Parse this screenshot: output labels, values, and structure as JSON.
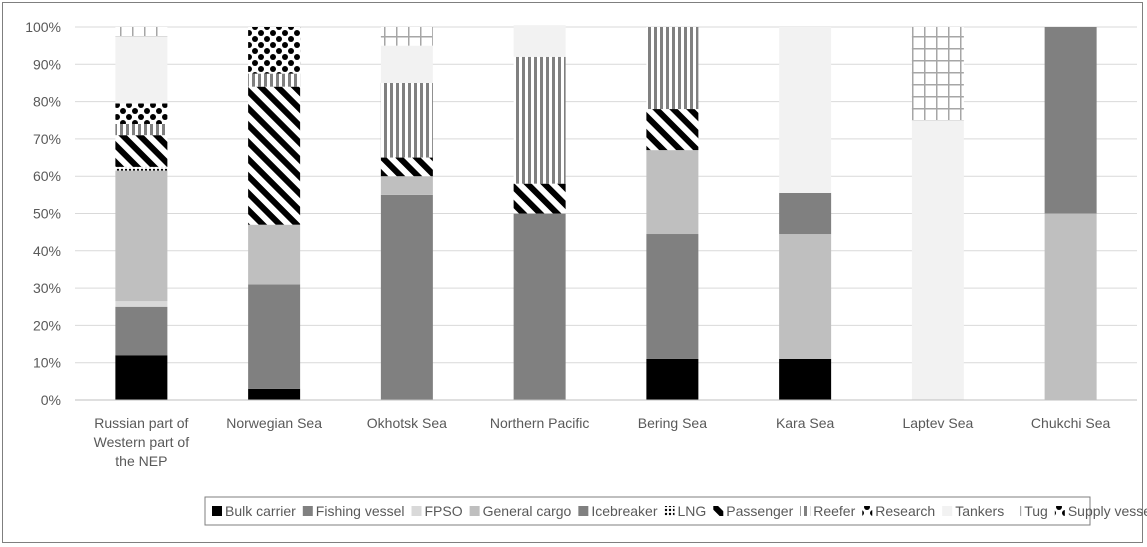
{
  "chart_data": {
    "type": "bar",
    "stacked": true,
    "normalized": true,
    "categories": [
      [
        "Russian part of",
        "Western part of",
        "the NEP"
      ],
      [
        "Norwegian Sea"
      ],
      [
        "Okhotsk Sea"
      ],
      [
        "Northern Pacific"
      ],
      [
        "Bering Sea"
      ],
      [
        "Kara Sea"
      ],
      [
        "Laptev Sea"
      ],
      [
        "Chukchi Sea"
      ]
    ],
    "yticks": [
      "0%",
      "10%",
      "20%",
      "30%",
      "40%",
      "50%",
      "60%",
      "70%",
      "80%",
      "90%",
      "100%"
    ],
    "ylim": [
      0,
      100
    ],
    "grid": true,
    "legend_position": "bottom",
    "series": [
      {
        "name": "Bulk carrier",
        "values": [
          12,
          3,
          0,
          0,
          11,
          11,
          0,
          0
        ],
        "color": "#000000",
        "pattern": "solid"
      },
      {
        "name": "Fishing vessel",
        "values": [
          13,
          28,
          55,
          50,
          33.5,
          0,
          0,
          0
        ],
        "color": "#808080",
        "pattern": "solid"
      },
      {
        "name": "FPSO",
        "values": [
          1.5,
          0,
          0,
          0,
          0,
          0,
          0,
          0
        ],
        "color": "#d9d9d9",
        "pattern": "solid"
      },
      {
        "name": "General cargo",
        "values": [
          35,
          16,
          5,
          0,
          22.5,
          33.5,
          0,
          50
        ],
        "color": "#bfbfbf",
        "pattern": "solid"
      },
      {
        "name": "Icebreaker",
        "values": [
          0,
          0,
          0,
          0,
          0,
          11,
          0,
          50
        ],
        "color": "#808080",
        "pattern": "solid"
      },
      {
        "name": "LNG",
        "values": [
          1,
          0,
          0,
          0,
          0,
          0,
          0,
          0
        ],
        "color": "#000000",
        "pattern": "dots"
      },
      {
        "name": "Passenger",
        "values": [
          8.5,
          37,
          5,
          8,
          11,
          0,
          0,
          0
        ],
        "color": "#000000",
        "pattern": "diagonal"
      },
      {
        "name": "Reefer",
        "values": [
          3,
          3.5,
          20,
          34,
          22,
          0,
          0,
          0
        ],
        "color": "#808080",
        "pattern": "vertical"
      },
      {
        "name": "Research",
        "values": [
          5.5,
          0,
          0,
          0,
          0,
          0,
          0,
          0
        ],
        "color": "#000000",
        "pattern": "circles"
      },
      {
        "name": "Tankers",
        "values": [
          18,
          0,
          10,
          8.5,
          0,
          44.5,
          75,
          0
        ],
        "color": "#f2f2f2",
        "pattern": "solid"
      },
      {
        "name": "Tug",
        "values": [
          2.5,
          0,
          5,
          0,
          0,
          0,
          25,
          0
        ],
        "color": "#a6a6a6",
        "pattern": "grid"
      },
      {
        "name": "Supply vessel",
        "values": [
          0,
          12.5,
          0,
          0,
          0,
          0,
          0,
          0
        ],
        "color": "#000000",
        "pattern": "circles"
      }
    ]
  }
}
